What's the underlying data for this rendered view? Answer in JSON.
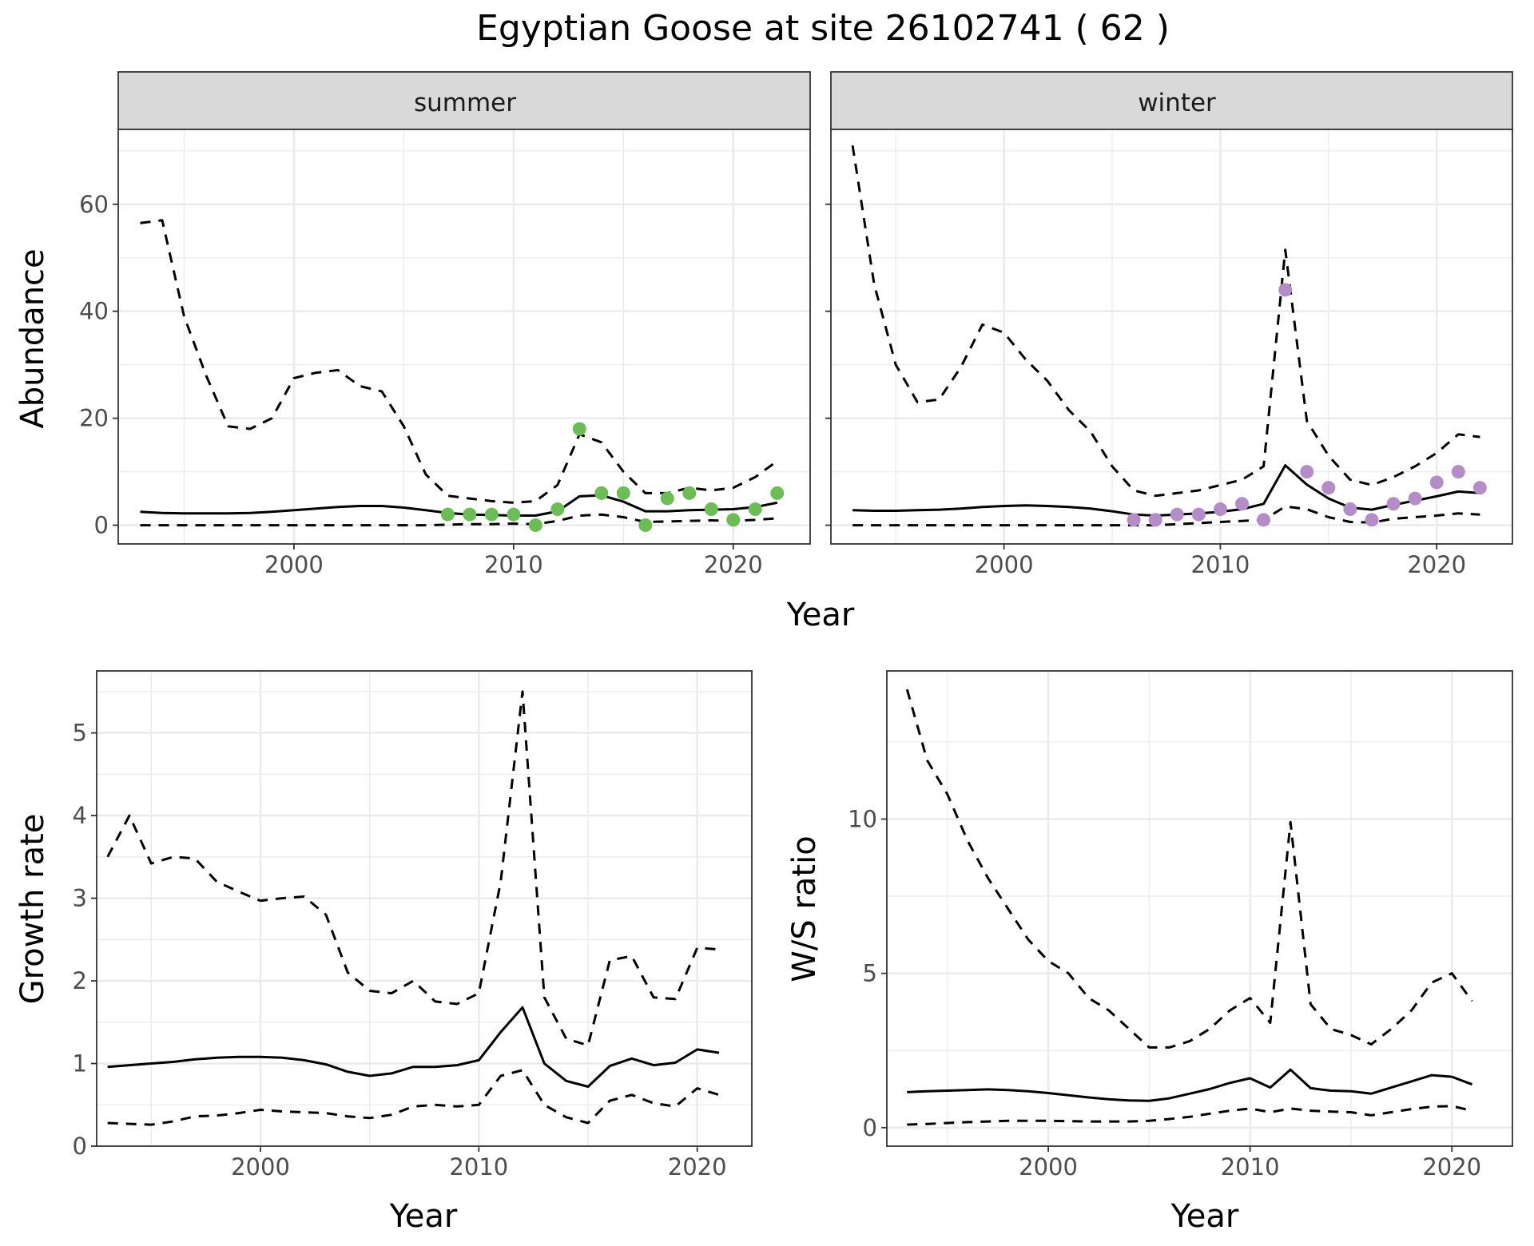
{
  "title": "Egyptian Goose at site 26102741 ( 62 )",
  "colors": {
    "summer_points": "#6dbd57",
    "winter_points": "#b48cc8",
    "lines": "#000000",
    "strip": "#d9d9d9"
  },
  "chart_data": [
    {
      "type": "line",
      "facet": "summer",
      "xlabel": "Year",
      "ylabel": "Abundance",
      "xlim": [
        1992,
        2023.5
      ],
      "ylim": [
        -3.5,
        74
      ],
      "xticks": [
        2000,
        2010,
        2020
      ],
      "yticks": [
        0,
        20,
        40,
        60
      ],
      "grid": true,
      "series": [
        {
          "style": "solid",
          "x": [
            1993,
            1994,
            1995,
            1996,
            1997,
            1998,
            1999,
            2000,
            2001,
            2002,
            2003,
            2004,
            2005,
            2006,
            2007,
            2008,
            2009,
            2010,
            2011,
            2012,
            2013,
            2014,
            2015,
            2016,
            2017,
            2018,
            2019,
            2020,
            2021,
            2022
          ],
          "y": [
            2.5,
            2.3,
            2.2,
            2.2,
            2.2,
            2.3,
            2.5,
            2.8,
            3.1,
            3.4,
            3.6,
            3.6,
            3.3,
            2.8,
            2.3,
            2.0,
            1.9,
            1.8,
            1.8,
            2.6,
            5.4,
            5.6,
            4.4,
            2.6,
            2.6,
            2.8,
            2.9,
            3.0,
            3.4,
            4.2
          ]
        },
        {
          "style": "dashed",
          "x": [
            1993,
            1994,
            1995,
            1996,
            1997,
            1998,
            1999,
            2000,
            2001,
            2002,
            2003,
            2004,
            2005,
            2006,
            2007,
            2008,
            2009,
            2010,
            2011,
            2012,
            2013,
            2014,
            2015,
            2016,
            2017,
            2018,
            2019,
            2020,
            2021,
            2022
          ],
          "y": [
            56.5,
            57,
            39,
            28,
            18.5,
            18,
            20,
            27.5,
            28.5,
            29,
            26,
            25,
            18.5,
            9.5,
            5.5,
            5,
            4.5,
            4.2,
            4.5,
            7.5,
            17,
            15.5,
            10,
            6,
            6,
            7,
            6.5,
            7,
            9,
            12
          ]
        },
        {
          "style": "dashed",
          "x": [
            1993,
            1994,
            1995,
            1996,
            1997,
            1998,
            1999,
            2000,
            2001,
            2002,
            2003,
            2004,
            2005,
            2006,
            2007,
            2008,
            2009,
            2010,
            2011,
            2012,
            2013,
            2014,
            2015,
            2016,
            2017,
            2018,
            2019,
            2020,
            2021,
            2022
          ],
          "y": [
            0,
            0,
            0,
            0,
            0,
            0,
            0,
            0,
            0,
            0,
            0,
            0,
            0,
            0,
            0.1,
            0.2,
            0.2,
            0.3,
            0.2,
            0.8,
            1.8,
            2.0,
            1.5,
            0.6,
            0.7,
            0.8,
            0.9,
            0.8,
            1.0,
            1.3
          ]
        },
        {
          "style": "points",
          "x": [
            2007,
            2008,
            2009,
            2010,
            2011,
            2012,
            2013,
            2014,
            2015,
            2016,
            2017,
            2018,
            2019,
            2020,
            2021,
            2022
          ],
          "y": [
            2,
            2,
            2,
            2,
            0,
            3,
            18,
            6,
            6,
            0,
            5,
            6,
            3,
            1,
            3,
            6
          ]
        }
      ]
    },
    {
      "type": "line",
      "facet": "winter",
      "xlabel": "Year",
      "ylabel": "Abundance",
      "xlim": [
        1992,
        2023.5
      ],
      "ylim": [
        -3.5,
        74
      ],
      "xticks": [
        2000,
        2010,
        2020
      ],
      "yticks": [
        0,
        20,
        40,
        60
      ],
      "grid": true,
      "series": [
        {
          "style": "solid",
          "x": [
            1993,
            1994,
            1995,
            1996,
            1997,
            1998,
            1999,
            2000,
            2001,
            2002,
            2003,
            2004,
            2005,
            2006,
            2007,
            2008,
            2009,
            2010,
            2011,
            2012,
            2013,
            2014,
            2015,
            2016,
            2017,
            2018,
            2019,
            2020,
            2021,
            2022
          ],
          "y": [
            2.8,
            2.7,
            2.7,
            2.8,
            2.9,
            3.1,
            3.4,
            3.6,
            3.7,
            3.6,
            3.4,
            3.1,
            2.6,
            2.0,
            1.8,
            2.0,
            2.2,
            2.5,
            3.0,
            4.0,
            11.2,
            7.6,
            5.0,
            3.3,
            2.9,
            3.8,
            4.6,
            5.4,
            6.3,
            6.0
          ]
        },
        {
          "style": "dashed",
          "x": [
            1993,
            1994,
            1995,
            1996,
            1997,
            1998,
            1999,
            2000,
            2001,
            2002,
            2003,
            2004,
            2005,
            2006,
            2007,
            2008,
            2009,
            2010,
            2011,
            2012,
            2013,
            2014,
            2015,
            2016,
            2017,
            2018,
            2019,
            2020,
            2021,
            2022
          ],
          "y": [
            71,
            45,
            30,
            23,
            23.5,
            29.5,
            37.5,
            36,
            31,
            27,
            21.5,
            17.5,
            11,
            6.5,
            5.5,
            6,
            6.5,
            7.5,
            8.5,
            11,
            51.5,
            19.5,
            13,
            8.5,
            7.5,
            9,
            11,
            13.5,
            17,
            16.5
          ]
        },
        {
          "style": "dashed",
          "x": [
            1993,
            1994,
            1995,
            1996,
            1997,
            1998,
            1999,
            2000,
            2001,
            2002,
            2003,
            2004,
            2005,
            2006,
            2007,
            2008,
            2009,
            2010,
            2011,
            2012,
            2013,
            2014,
            2015,
            2016,
            2017,
            2018,
            2019,
            2020,
            2021,
            2022
          ],
          "y": [
            0,
            0,
            0,
            0,
            0,
            0,
            0,
            0,
            0,
            0,
            0,
            0,
            0,
            0,
            0,
            0.2,
            0.4,
            0.6,
            0.8,
            1.0,
            3.5,
            3.0,
            1.5,
            0.6,
            0.5,
            1.2,
            1.5,
            1.8,
            2.2,
            2.0
          ]
        },
        {
          "style": "points",
          "x": [
            2006,
            2007,
            2008,
            2009,
            2010,
            2011,
            2012,
            2013,
            2014,
            2015,
            2016,
            2017,
            2018,
            2019,
            2020,
            2021,
            2022
          ],
          "y": [
            1,
            1,
            2,
            2,
            3,
            4,
            1,
            44,
            10,
            7,
            3,
            1,
            4,
            5,
            8,
            10,
            7
          ]
        }
      ]
    },
    {
      "type": "line",
      "xlabel": "Year",
      "ylabel": "Growth rate",
      "xlim": [
        1992.5,
        2022.5
      ],
      "ylim": [
        0,
        5.75
      ],
      "xticks": [
        2000,
        2010,
        2020
      ],
      "yticks": [
        0,
        1,
        2,
        3,
        4,
        5
      ],
      "grid": true,
      "series": [
        {
          "style": "solid",
          "x": [
            1993,
            1994,
            1995,
            1996,
            1997,
            1998,
            1999,
            2000,
            2001,
            2002,
            2003,
            2004,
            2005,
            2006,
            2007,
            2008,
            2009,
            2010,
            2011,
            2012,
            2013,
            2014,
            2015,
            2016,
            2017,
            2018,
            2019,
            2020,
            2021
          ],
          "y": [
            0.96,
            0.98,
            1.0,
            1.02,
            1.05,
            1.07,
            1.08,
            1.08,
            1.07,
            1.04,
            0.99,
            0.9,
            0.85,
            0.88,
            0.96,
            0.96,
            0.98,
            1.04,
            1.38,
            1.68,
            1.0,
            0.79,
            0.72,
            0.97,
            1.06,
            0.98,
            1.01,
            1.17,
            1.13
          ]
        },
        {
          "style": "dashed",
          "x": [
            1993,
            1994,
            1995,
            1996,
            1997,
            1998,
            1999,
            2000,
            2001,
            2002,
            2003,
            2004,
            2005,
            2006,
            2007,
            2008,
            2009,
            2010,
            2011,
            2012,
            2013,
            2014,
            2015,
            2016,
            2017,
            2018,
            2019,
            2020,
            2021
          ],
          "y": [
            3.5,
            4.0,
            3.42,
            3.5,
            3.48,
            3.2,
            3.08,
            2.97,
            3.0,
            3.02,
            2.8,
            2.1,
            1.88,
            1.85,
            2.0,
            1.75,
            1.72,
            1.85,
            3.2,
            5.5,
            1.8,
            1.3,
            1.22,
            2.25,
            2.3,
            1.8,
            1.78,
            2.4,
            2.38
          ]
        },
        {
          "style": "dashed",
          "x": [
            1993,
            1994,
            1995,
            1996,
            1997,
            1998,
            1999,
            2000,
            2001,
            2002,
            2003,
            2004,
            2005,
            2006,
            2007,
            2008,
            2009,
            2010,
            2011,
            2012,
            2013,
            2014,
            2015,
            2016,
            2017,
            2018,
            2019,
            2020,
            2021
          ],
          "y": [
            0.28,
            0.27,
            0.26,
            0.3,
            0.36,
            0.37,
            0.4,
            0.44,
            0.42,
            0.41,
            0.4,
            0.36,
            0.34,
            0.38,
            0.48,
            0.5,
            0.48,
            0.5,
            0.85,
            0.92,
            0.5,
            0.35,
            0.28,
            0.55,
            0.62,
            0.52,
            0.48,
            0.7,
            0.62
          ]
        }
      ]
    },
    {
      "type": "line",
      "xlabel": "Year",
      "ylabel": "W/S ratio",
      "xlim": [
        1992,
        2023
      ],
      "ylim": [
        -0.6,
        14.8
      ],
      "xticks": [
        2000,
        2010,
        2020
      ],
      "yticks": [
        0,
        5,
        10
      ],
      "grid": true,
      "series": [
        {
          "style": "solid",
          "x": [
            1993,
            1994,
            1995,
            1996,
            1997,
            1998,
            1999,
            2000,
            2001,
            2002,
            2003,
            2004,
            2005,
            2006,
            2007,
            2008,
            2009,
            2010,
            2011,
            2012,
            2013,
            2014,
            2015,
            2016,
            2017,
            2018,
            2019,
            2020,
            2021
          ],
          "y": [
            1.15,
            1.18,
            1.2,
            1.22,
            1.24,
            1.22,
            1.18,
            1.12,
            1.05,
            0.98,
            0.92,
            0.88,
            0.87,
            0.95,
            1.1,
            1.25,
            1.45,
            1.6,
            1.3,
            1.88,
            1.28,
            1.2,
            1.18,
            1.1,
            1.3,
            1.5,
            1.7,
            1.65,
            1.4
          ]
        },
        {
          "style": "dashed",
          "x": [
            1993,
            1994,
            1995,
            1996,
            1997,
            1998,
            1999,
            2000,
            2001,
            2002,
            2003,
            2004,
            2005,
            2006,
            2007,
            2008,
            2009,
            2010,
            2011,
            2012,
            2013,
            2014,
            2015,
            2016,
            2017,
            2018,
            2019,
            2020,
            2021
          ],
          "y": [
            14.2,
            11.9,
            10.8,
            9.3,
            8.1,
            7.1,
            6.1,
            5.4,
            5.0,
            4.2,
            3.8,
            3.2,
            2.6,
            2.6,
            2.8,
            3.2,
            3.8,
            4.2,
            3.4,
            9.9,
            4.0,
            3.2,
            3.0,
            2.7,
            3.2,
            3.8,
            4.7,
            5.0,
            4.1
          ]
        },
        {
          "style": "dashed",
          "x": [
            1993,
            1994,
            1995,
            1996,
            1997,
            1998,
            1999,
            2000,
            2001,
            2002,
            2003,
            2004,
            2005,
            2006,
            2007,
            2008,
            2009,
            2010,
            2011,
            2012,
            2013,
            2014,
            2015,
            2016,
            2017,
            2018,
            2019,
            2020,
            2021
          ],
          "y": [
            0.1,
            0.12,
            0.15,
            0.18,
            0.2,
            0.22,
            0.22,
            0.22,
            0.21,
            0.2,
            0.2,
            0.2,
            0.22,
            0.28,
            0.35,
            0.45,
            0.55,
            0.62,
            0.5,
            0.62,
            0.55,
            0.52,
            0.5,
            0.4,
            0.5,
            0.6,
            0.68,
            0.7,
            0.55
          ]
        }
      ]
    }
  ]
}
